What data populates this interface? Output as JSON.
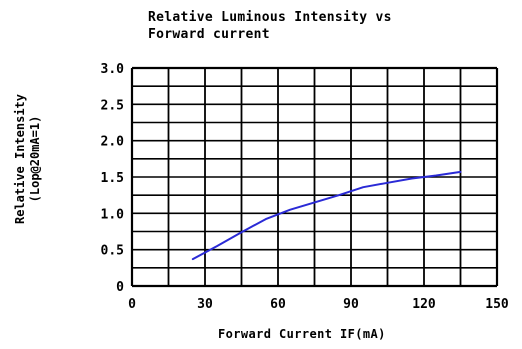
{
  "chart_data": {
    "type": "line",
    "title_lines": [
      "Relative Luminous Intensity vs",
      "Forward current"
    ],
    "xlabel": "Forward Current IF(mA)",
    "ylabel_lines": [
      "Relative Intensity",
      "(Lop@20mA=1)"
    ],
    "xlim": [
      0,
      150
    ],
    "ylim": [
      0,
      3.0
    ],
    "x_ticks": [
      0,
      30,
      60,
      90,
      120,
      150
    ],
    "x_tick_labels": [
      "0",
      "30",
      "60",
      "90",
      "120",
      "150"
    ],
    "y_ticks": [
      0,
      0.5,
      1.0,
      1.5,
      2.0,
      2.5,
      3.0
    ],
    "y_tick_labels": [
      "0",
      "0.5",
      "1.0",
      "1.5",
      "2.0",
      "2.5",
      "3.0"
    ],
    "grid": true,
    "x_grid_step": 15,
    "y_grid_step": 0.25,
    "series": [
      {
        "color": "#2a2ad6",
        "x": [
          25,
          35,
          45,
          55,
          65,
          75,
          85,
          95,
          105,
          115,
          125,
          135
        ],
        "y": [
          0.37,
          0.55,
          0.74,
          0.92,
          1.05,
          1.15,
          1.25,
          1.36,
          1.42,
          1.48,
          1.52,
          1.57
        ]
      }
    ]
  }
}
